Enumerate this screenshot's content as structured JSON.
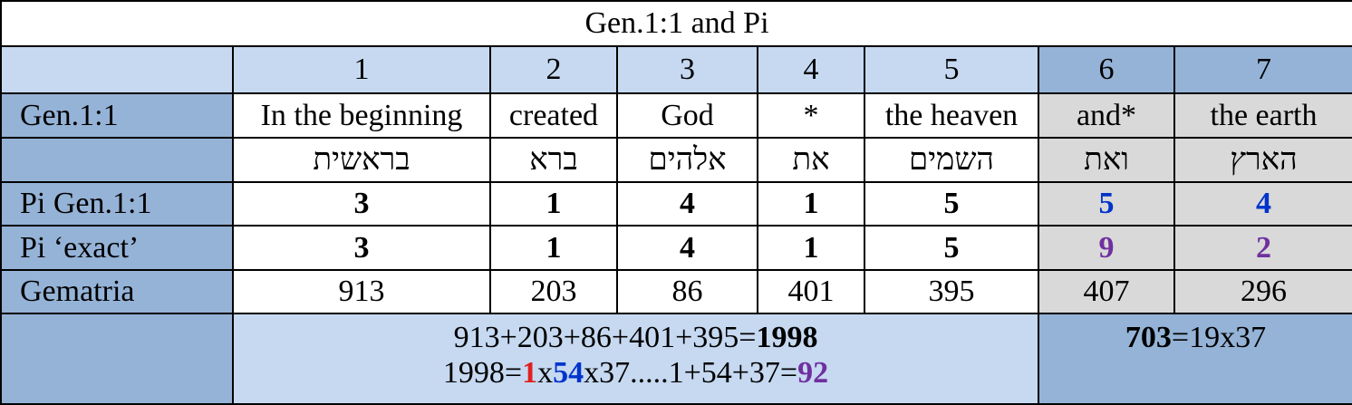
{
  "title": "Gen.1:1 and Pi",
  "columns": [
    1,
    2,
    3,
    4,
    5,
    6,
    7
  ],
  "rows": [
    {
      "label": "Gen.1:1",
      "cells": [
        "In the beginning",
        "created",
        "God",
        "*",
        "the heaven",
        "and*",
        "the earth"
      ]
    },
    {
      "cells": [
        "בראשית",
        "ברא",
        "אלהים",
        "את",
        "השמים",
        "ואת",
        "הארץ"
      ]
    },
    {
      "label": "Pi Gen.1:1",
      "cells": [
        3,
        1,
        4,
        1,
        5,
        5,
        4
      ]
    },
    {
      "label": "Pi ‘exact’",
      "cells": [
        3,
        1,
        4,
        1,
        5,
        9,
        2
      ]
    },
    {
      "label": "Gematria",
      "cells": [
        913,
        203,
        86,
        401,
        395,
        407,
        296
      ]
    }
  ],
  "summary": {
    "equation": "913+203+86+401+395=",
    "total": "1998",
    "factor_line": [
      "1998=",
      "1",
      "x",
      "54",
      "x37.....1+54+37=",
      "92"
    ],
    "right": [
      "703",
      "=19x37"
    ]
  }
}
